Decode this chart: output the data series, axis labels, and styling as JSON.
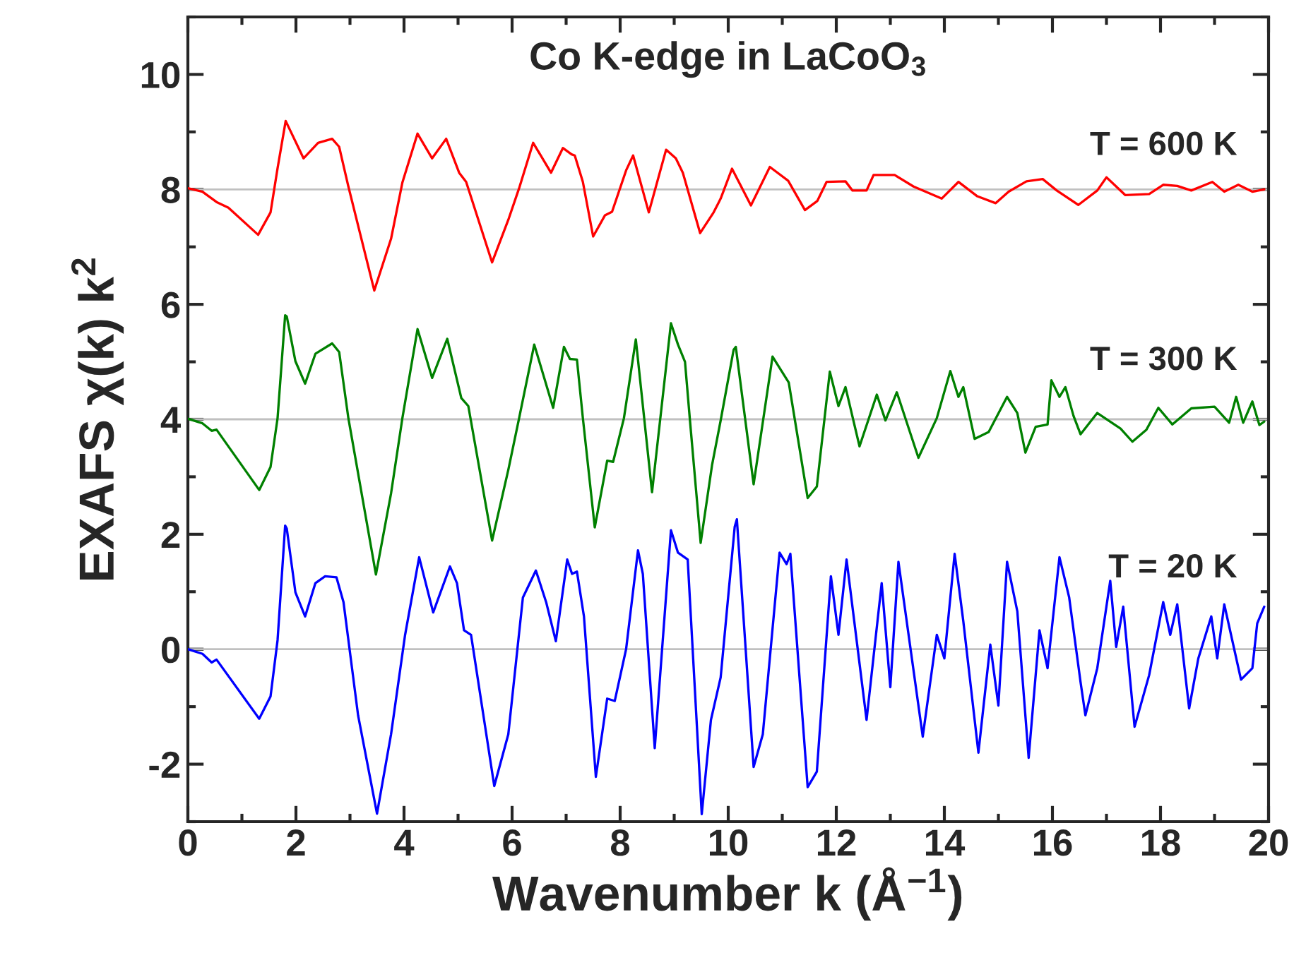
{
  "chart_data": {
    "type": "line",
    "title": "Co K-edge in LaCoO$_{3}$",
    "xlabel": "Wavenumber k (Å$^{−1}$)",
    "ylabel": "EXAFS χ(k) k$^{2}$",
    "xlim": [
      0,
      20
    ],
    "ylim": [
      -3,
      11
    ],
    "xticks": [
      0,
      {
        "value": 1,
        "label": null
      },
      2,
      {
        "value": 3,
        "label": null
      },
      4,
      {
        "value": 5,
        "label": null
      },
      6,
      {
        "value": 7,
        "label": null
      },
      8,
      {
        "value": 9,
        "label": null
      },
      10,
      {
        "value": 11,
        "label": null
      },
      12,
      {
        "value": 13,
        "label": null
      },
      14,
      {
        "value": 15,
        "label": null
      },
      16,
      {
        "value": 17,
        "label": null
      },
      18,
      {
        "value": 19,
        "label": null
      },
      20
    ],
    "yticks": [
      {
        "value": -3,
        "label": null
      },
      -2,
      {
        "value": -1,
        "label": null
      },
      0,
      {
        "value": 1,
        "label": null
      },
      2,
      {
        "value": 3,
        "label": null
      },
      4,
      {
        "value": 5,
        "label": null
      },
      6,
      {
        "value": 7,
        "label": null
      },
      8,
      {
        "value": 9,
        "label": null
      },
      10,
      {
        "value": 11,
        "label": null
      }
    ],
    "grid": false,
    "legend": false,
    "marker": "none",
    "line_style": "solid",
    "ref_lines": [
      {
        "axis": "y",
        "value": 0,
        "color": "#c0c0c0"
      },
      {
        "axis": "y",
        "value": 4,
        "color": "#c0c0c0"
      },
      {
        "axis": "y",
        "value": 8,
        "color": "#c0c0c0"
      }
    ],
    "series": [
      {
        "name": "T = 600 K",
        "color": "#ff0000",
        "x": [
          0,
          0.27,
          0.53,
          0.75,
          1.3,
          1.53,
          1.66,
          1.81,
          2.14,
          2.41,
          2.67,
          2.8,
          2.97,
          3.45,
          3.76,
          3.97,
          4.25,
          4.52,
          4.78,
          5.02,
          5.15,
          5.63,
          5.93,
          6.13,
          6.39,
          6.72,
          6.94,
          7.1,
          7.16,
          7.31,
          7.5,
          7.72,
          7.85,
          8.11,
          8.24,
          8.53,
          8.85,
          9.03,
          9.16,
          9.48,
          9.73,
          9.86,
          10.07,
          10.42,
          10.77,
          11.11,
          11.42,
          11.65,
          11.82,
          12.17,
          12.3,
          12.56,
          12.69,
          13.08,
          13.43,
          13.95,
          14.26,
          14.61,
          14.95,
          15.19,
          15.52,
          15.82,
          16.08,
          16.48,
          16.83,
          17.0,
          17.35,
          17.79,
          18.05,
          18.31,
          18.57,
          18.96,
          19.18,
          19.44,
          19.7,
          19.92
        ],
        "values": [
          8.02,
          7.96,
          7.78,
          7.68,
          7.21,
          7.6,
          8.37,
          9.19,
          8.54,
          8.81,
          8.88,
          8.74,
          8.05,
          6.24,
          7.14,
          8.12,
          8.97,
          8.54,
          8.88,
          8.29,
          8.13,
          6.73,
          7.47,
          8.02,
          8.81,
          8.29,
          8.72,
          8.61,
          8.59,
          8.13,
          7.18,
          7.55,
          7.61,
          8.33,
          8.59,
          7.6,
          8.69,
          8.54,
          8.29,
          7.24,
          7.6,
          7.84,
          8.36,
          7.72,
          8.39,
          8.15,
          7.64,
          7.8,
          8.13,
          8.14,
          7.98,
          7.98,
          8.25,
          8.25,
          8.05,
          7.84,
          8.13,
          7.88,
          7.76,
          7.96,
          8.14,
          8.18,
          7.98,
          7.73,
          7.98,
          8.21,
          7.9,
          7.92,
          8.08,
          8.06,
          7.98,
          8.13,
          7.96,
          8.08,
          7.96,
          8.0
        ]
      },
      {
        "name": "T = 300 K",
        "color": "#008000",
        "x": [
          0,
          0.27,
          0.44,
          0.53,
          1.32,
          1.53,
          1.66,
          1.8,
          1.83,
          1.99,
          2.17,
          2.36,
          2.67,
          2.8,
          2.97,
          3.48,
          3.76,
          3.97,
          4.25,
          4.52,
          4.8,
          5.06,
          5.19,
          5.63,
          5.93,
          6.13,
          6.41,
          6.76,
          6.96,
          7.07,
          7.2,
          7.31,
          7.53,
          7.76,
          7.87,
          8.07,
          8.29,
          8.59,
          8.94,
          9.07,
          9.2,
          9.29,
          9.49,
          9.7,
          9.86,
          10.1,
          10.14,
          10.47,
          10.82,
          11.12,
          11.47,
          11.64,
          11.88,
          12.04,
          12.17,
          12.43,
          12.75,
          12.91,
          13.12,
          13.52,
          13.86,
          14.11,
          14.26,
          14.35,
          14.56,
          14.82,
          15.16,
          15.35,
          15.5,
          15.69,
          15.91,
          15.98,
          16.13,
          16.24,
          16.39,
          16.52,
          16.83,
          17.26,
          17.48,
          17.74,
          17.96,
          18.22,
          18.57,
          19.0,
          19.27,
          19.4,
          19.53,
          19.7,
          19.83,
          19.92
        ],
        "values": [
          4.01,
          3.93,
          3.8,
          3.82,
          2.77,
          3.17,
          4.02,
          5.81,
          5.79,
          5.01,
          4.62,
          5.14,
          5.32,
          5.17,
          4.02,
          1.3,
          2.71,
          4.02,
          5.57,
          4.72,
          5.4,
          4.37,
          4.23,
          1.89,
          3.12,
          4.02,
          5.3,
          4.2,
          5.26,
          5.05,
          5.04,
          4.02,
          2.12,
          3.28,
          3.26,
          4.02,
          5.39,
          2.73,
          5.67,
          5.3,
          5.0,
          4.0,
          1.85,
          3.2,
          3.98,
          5.21,
          5.26,
          2.87,
          5.09,
          4.64,
          2.63,
          2.83,
          4.83,
          4.23,
          4.56,
          3.53,
          4.43,
          3.98,
          4.47,
          3.33,
          4.02,
          4.84,
          4.39,
          4.56,
          3.66,
          3.78,
          4.39,
          4.11,
          3.42,
          3.87,
          3.91,
          4.68,
          4.39,
          4.56,
          4.06,
          3.74,
          4.11,
          3.84,
          3.61,
          3.82,
          4.2,
          3.91,
          4.19,
          4.22,
          3.94,
          4.39,
          3.94,
          4.31,
          3.9,
          3.96
        ]
      },
      {
        "name": "T = 20 K",
        "color": "#0000ff",
        "x": [
          0,
          0.27,
          0.44,
          0.53,
          1.32,
          1.53,
          1.66,
          1.8,
          1.83,
          1.99,
          2.17,
          2.36,
          2.54,
          2.75,
          2.88,
          3.15,
          3.5,
          3.76,
          4.02,
          4.28,
          4.54,
          4.85,
          4.98,
          5.11,
          5.24,
          5.67,
          5.93,
          6.2,
          6.44,
          6.63,
          6.81,
          7.02,
          7.11,
          7.2,
          7.33,
          7.55,
          7.76,
          7.9,
          8.11,
          8.33,
          8.42,
          8.64,
          8.94,
          9.07,
          9.25,
          9.51,
          9.68,
          9.86,
          10.12,
          10.16,
          10.47,
          10.64,
          10.95,
          11.08,
          11.15,
          11.47,
          11.64,
          11.9,
          12.04,
          12.19,
          12.56,
          12.84,
          13.0,
          13.15,
          13.6,
          13.86,
          14.0,
          14.19,
          14.35,
          14.63,
          14.85,
          15.0,
          15.16,
          15.35,
          15.56,
          15.76,
          15.91,
          16.13,
          16.31,
          16.52,
          16.61,
          16.83,
          17.07,
          17.18,
          17.31,
          17.52,
          17.79,
          18.05,
          18.18,
          18.31,
          18.53,
          18.7,
          18.94,
          19.05,
          19.18,
          19.49,
          19.7,
          19.79,
          19.92
        ],
        "values": [
          0,
          -0.08,
          -0.23,
          -0.18,
          -1.21,
          -0.82,
          0.16,
          2.15,
          2.1,
          0.99,
          0.57,
          1.15,
          1.27,
          1.25,
          0.82,
          -1.15,
          -2.86,
          -1.48,
          0.25,
          1.6,
          0.64,
          1.44,
          1.15,
          0.33,
          0.25,
          -2.38,
          -1.48,
          0.9,
          1.37,
          0.82,
          0.14,
          1.56,
          1.31,
          1.35,
          0.57,
          -2.22,
          -0.86,
          -0.9,
          0,
          1.72,
          1.31,
          -1.72,
          2.07,
          1.68,
          1.56,
          -2.87,
          -1.23,
          -0.49,
          2.13,
          2.26,
          -2.05,
          -1.48,
          1.68,
          1.48,
          1.66,
          -2.4,
          -2.13,
          1.27,
          0.25,
          1.56,
          -1.23,
          1.15,
          -0.66,
          1.52,
          -1.52,
          0.25,
          -0.16,
          1.66,
          0.49,
          -1.8,
          0.08,
          -0.98,
          1.52,
          0.66,
          -1.89,
          0.33,
          -0.33,
          1.6,
          0.9,
          -0.57,
          -1.15,
          -0.33,
          1.19,
          0.04,
          0.74,
          -1.35,
          -0.45,
          0.82,
          0.25,
          0.78,
          -1.03,
          -0.16,
          0.57,
          -0.16,
          0.78,
          -0.53,
          -0.33,
          0.45,
          0.74
        ]
      }
    ]
  }
}
